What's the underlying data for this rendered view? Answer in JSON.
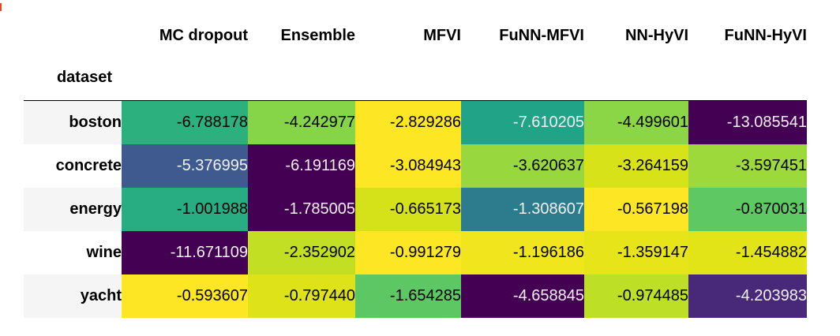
{
  "table": {
    "index_name": "dataset",
    "columns": [
      "MC dropout",
      "Ensemble",
      "MFVI",
      "FuNN-MFVI",
      "NN-HyVI",
      "FuNN-HyVI"
    ],
    "rows": [
      {
        "label": "boston",
        "cells": [
          {
            "text": "-6.788178",
            "bg": "#2cb17e",
            "fg": "#000000"
          },
          {
            "text": "-4.242977",
            "bg": "#86d549",
            "fg": "#000000"
          },
          {
            "text": "-2.829286",
            "bg": "#fde725",
            "fg": "#000000"
          },
          {
            "text": "-7.610205",
            "bg": "#20a386",
            "fg": "#f1f1f1"
          },
          {
            "text": "-4.499601",
            "bg": "#8bd646",
            "fg": "#000000"
          },
          {
            "text": "-13.085541",
            "bg": "#440154",
            "fg": "#f1f1f1"
          }
        ]
      },
      {
        "label": "concrete",
        "cells": [
          {
            "text": "-5.376995",
            "bg": "#3f5a8e",
            "fg": "#f1f1f1"
          },
          {
            "text": "-6.191169",
            "bg": "#440154",
            "fg": "#f1f1f1"
          },
          {
            "text": "-3.084943",
            "bg": "#fde725",
            "fg": "#000000"
          },
          {
            "text": "-3.620637",
            "bg": "#98d83e",
            "fg": "#000000"
          },
          {
            "text": "-3.264159",
            "bg": "#d8e219",
            "fg": "#000000"
          },
          {
            "text": "-3.597451",
            "bg": "#9dd93b",
            "fg": "#000000"
          }
        ]
      },
      {
        "label": "energy",
        "cells": [
          {
            "text": "-1.001988",
            "bg": "#27ad81",
            "fg": "#000000"
          },
          {
            "text": "-1.785005",
            "bg": "#440154",
            "fg": "#f1f1f1"
          },
          {
            "text": "-0.665173",
            "bg": "#d5e21a",
            "fg": "#000000"
          },
          {
            "text": "-1.308607",
            "bg": "#2c7c8e",
            "fg": "#f1f1f1"
          },
          {
            "text": "-0.567198",
            "bg": "#fde725",
            "fg": "#000000"
          },
          {
            "text": "-0.870031",
            "bg": "#5ec962",
            "fg": "#000000"
          }
        ]
      },
      {
        "label": "wine",
        "cells": [
          {
            "text": "-11.671109",
            "bg": "#440154",
            "fg": "#f1f1f1"
          },
          {
            "text": "-2.352902",
            "bg": "#c2df23",
            "fg": "#000000"
          },
          {
            "text": "-0.991279",
            "bg": "#fde725",
            "fg": "#000000"
          },
          {
            "text": "-1.196186",
            "bg": "#f1e51d",
            "fg": "#000000"
          },
          {
            "text": "-1.359147",
            "bg": "#e7e419",
            "fg": "#000000"
          },
          {
            "text": "-1.454882",
            "bg": "#e2e418",
            "fg": "#000000"
          }
        ]
      },
      {
        "label": "yacht",
        "cells": [
          {
            "text": "-0.593607",
            "bg": "#fde725",
            "fg": "#000000"
          },
          {
            "text": "-0.797440",
            "bg": "#dde318",
            "fg": "#000000"
          },
          {
            "text": "-1.654285",
            "bg": "#5dc863",
            "fg": "#000000"
          },
          {
            "text": "-4.658845",
            "bg": "#440154",
            "fg": "#f1f1f1"
          },
          {
            "text": "-0.974485",
            "bg": "#bddf26",
            "fg": "#000000"
          },
          {
            "text": "-4.203983",
            "bg": "#482878",
            "fg": "#f1f1f1"
          }
        ]
      }
    ]
  }
}
